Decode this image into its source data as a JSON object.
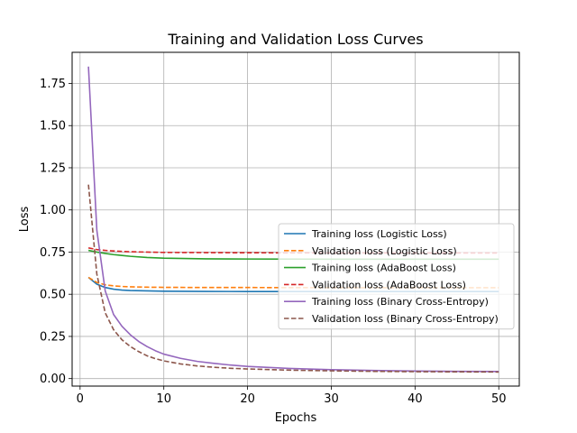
{
  "chart_data": {
    "type": "line",
    "title": "Training and Validation Loss Curves",
    "xlabel": "Epochs",
    "ylabel": "Loss",
    "xlim": [
      -0.95,
      52.45
    ],
    "ylim": [
      -0.0445,
      1.9345
    ],
    "xticks": [
      0,
      10,
      20,
      30,
      40,
      50
    ],
    "yticks": [
      0.0,
      0.25,
      0.5,
      0.75,
      1.0,
      1.25,
      1.5,
      1.75
    ],
    "xtick_labels": [
      "0",
      "10",
      "20",
      "30",
      "40",
      "50"
    ],
    "ytick_labels": [
      "0.00",
      "0.25",
      "0.50",
      "0.75",
      "1.00",
      "1.25",
      "1.50",
      "1.75"
    ],
    "grid": true,
    "legend_position": "center-right",
    "series": [
      {
        "name": "Training loss (Logistic Loss)",
        "color": "#1f77b4",
        "dash": "solid",
        "x": [
          1,
          2,
          3,
          4,
          5,
          6,
          8,
          10,
          15,
          20,
          30,
          40,
          50
        ],
        "y": [
          0.6,
          0.56,
          0.54,
          0.53,
          0.525,
          0.522,
          0.52,
          0.518,
          0.517,
          0.516,
          0.516,
          0.516,
          0.516
        ]
      },
      {
        "name": "Validation loss (Logistic Loss)",
        "color": "#ff7f0e",
        "dash": "dashed",
        "x": [
          1,
          2,
          3,
          4,
          5,
          6,
          8,
          10,
          15,
          20,
          30,
          40,
          50
        ],
        "y": [
          0.6,
          0.57,
          0.556,
          0.55,
          0.546,
          0.544,
          0.542,
          0.541,
          0.54,
          0.54,
          0.539,
          0.539,
          0.539
        ]
      },
      {
        "name": "Training loss (AdaBoost Loss)",
        "color": "#2ca02c",
        "dash": "solid",
        "x": [
          1,
          2,
          3,
          4,
          5,
          6,
          8,
          10,
          15,
          20,
          30,
          40,
          50
        ],
        "y": [
          0.76,
          0.75,
          0.742,
          0.735,
          0.73,
          0.725,
          0.718,
          0.714,
          0.71,
          0.709,
          0.708,
          0.708,
          0.708
        ]
      },
      {
        "name": "Validation loss (AdaBoost Loss)",
        "color": "#d62728",
        "dash": "dashed",
        "x": [
          1,
          2,
          3,
          4,
          5,
          6,
          8,
          10,
          15,
          20,
          30,
          40,
          50
        ],
        "y": [
          0.775,
          0.765,
          0.76,
          0.757,
          0.754,
          0.752,
          0.75,
          0.748,
          0.747,
          0.746,
          0.745,
          0.745,
          0.745
        ]
      },
      {
        "name": "Training loss (Binary Cross-Entropy)",
        "color": "#9467bd",
        "dash": "solid",
        "x": [
          1,
          2,
          3,
          4,
          5,
          6,
          7,
          8,
          9,
          10,
          12,
          14,
          16,
          18,
          20,
          25,
          30,
          35,
          40,
          45,
          50
        ],
        "y": [
          1.85,
          0.88,
          0.52,
          0.38,
          0.31,
          0.26,
          0.22,
          0.19,
          0.165,
          0.145,
          0.12,
          0.102,
          0.09,
          0.08,
          0.072,
          0.06,
          0.053,
          0.048,
          0.045,
          0.043,
          0.042
        ]
      },
      {
        "name": "Validation loss (Binary Cross-Entropy)",
        "color": "#8c564b",
        "dash": "dashed",
        "x": [
          1,
          2,
          3,
          4,
          5,
          6,
          7,
          8,
          9,
          10,
          12,
          14,
          16,
          18,
          20,
          25,
          30,
          35,
          40,
          45,
          50
        ],
        "y": [
          1.15,
          0.62,
          0.39,
          0.29,
          0.23,
          0.19,
          0.16,
          0.135,
          0.118,
          0.105,
          0.087,
          0.075,
          0.067,
          0.061,
          0.057,
          0.05,
          0.046,
          0.043,
          0.041,
          0.04,
          0.039
        ]
      }
    ]
  }
}
